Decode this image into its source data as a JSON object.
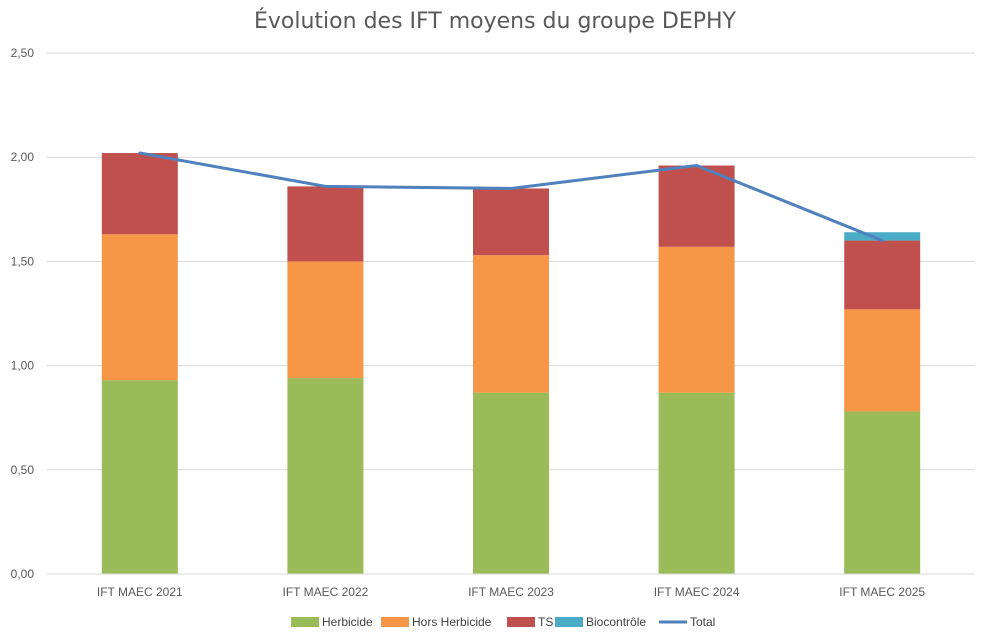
{
  "chart_data": {
    "type": "bar",
    "stacked": true,
    "title": "Évolution des IFT moyens du groupe DEPHY",
    "categories": [
      "IFT MAEC 2021",
      "IFT MAEC 2022",
      "IFT MAEC 2023",
      "IFT MAEC 2024",
      "IFT MAEC 2025"
    ],
    "ylim": [
      0,
      2.5
    ],
    "yticks": [
      "0,00",
      "0,50",
      "1,00",
      "1,50",
      "2,00",
      "2,50"
    ],
    "grid": true,
    "legend_position": "bottom",
    "series": [
      {
        "name": "Herbicide",
        "type": "bar",
        "color": "#9BBB59",
        "values": [
          0.93,
          0.94,
          0.87,
          0.87,
          0.78
        ]
      },
      {
        "name": "Hors Herbicide",
        "type": "bar",
        "color": "#F79646",
        "values": [
          0.7,
          0.56,
          0.66,
          0.7,
          0.49
        ]
      },
      {
        "name": "TS",
        "type": "bar",
        "color": "#C0504D",
        "values": [
          0.39,
          0.36,
          0.32,
          0.39,
          0.33
        ]
      },
      {
        "name": "Biocontrôle",
        "type": "bar",
        "color": "#4BACC6",
        "values": [
          0,
          0,
          0,
          0,
          0.04
        ]
      },
      {
        "name": "Total",
        "type": "line",
        "color": "#4F81BD",
        "values": [
          2.02,
          1.86,
          1.85,
          1.96,
          1.6
        ]
      }
    ]
  }
}
